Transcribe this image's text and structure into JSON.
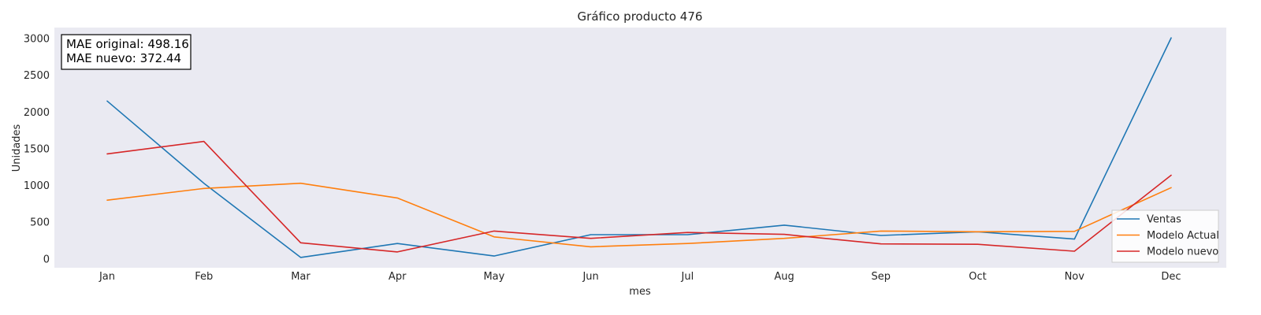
{
  "chart_data": {
    "type": "line",
    "title": "Gráfico producto 476",
    "xlabel": "mes",
    "ylabel": "Unidades",
    "categories": [
      "Jan",
      "Feb",
      "Mar",
      "Apr",
      "May",
      "Jun",
      "Jul",
      "Aug",
      "Sep",
      "Oct",
      "Nov",
      "Dec"
    ],
    "yticks": [
      0,
      500,
      1000,
      1500,
      2000,
      2500,
      3000
    ],
    "ylim": [
      -120,
      3150
    ],
    "grid": false,
    "legend_position": "bottom-right",
    "series": [
      {
        "name": "Ventas",
        "color": "#1f77b4",
        "values": [
          2150,
          1030,
          20,
          210,
          40,
          330,
          330,
          460,
          320,
          370,
          270,
          3010
        ]
      },
      {
        "name": "Modelo Actual",
        "color": "#ff7f0e",
        "values": [
          800,
          960,
          1030,
          830,
          300,
          165,
          210,
          280,
          380,
          370,
          375,
          970
        ]
      },
      {
        "name": "Modelo nuevo",
        "color": "#d62728",
        "values": [
          1430,
          1600,
          220,
          95,
          380,
          280,
          360,
          335,
          205,
          200,
          105,
          1140
        ]
      }
    ],
    "annotation": {
      "line1": "MAE original: 498.16",
      "line2": "MAE nuevo: 372.44"
    }
  }
}
